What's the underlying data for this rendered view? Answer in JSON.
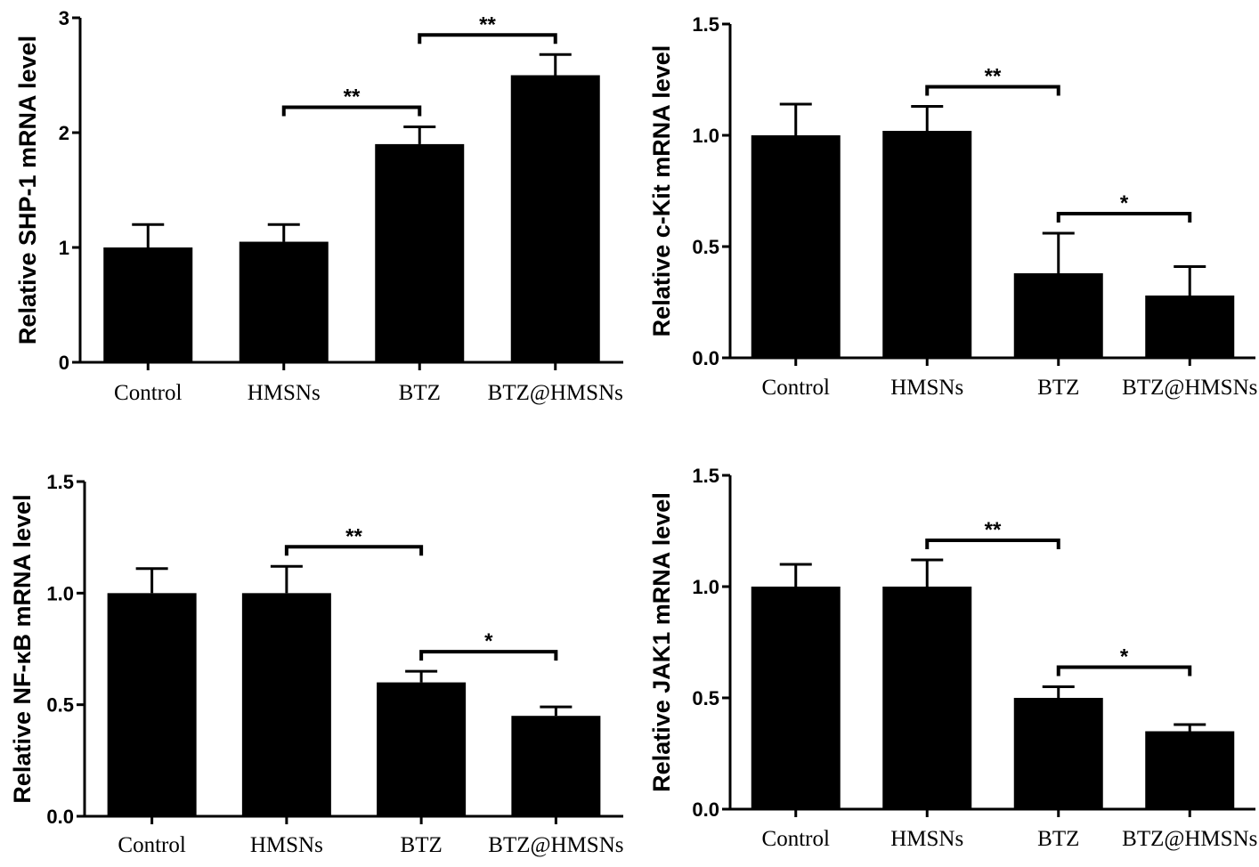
{
  "chart_data": [
    {
      "type": "bar",
      "ylabel": "Relative SHP-1 mRNA level",
      "xlabel": "",
      "categories": [
        "Control",
        "HMSNs",
        "BTZ",
        "BTZ@HMSNs"
      ],
      "values": [
        1.0,
        1.05,
        1.9,
        2.5
      ],
      "errors": [
        0.2,
        0.15,
        0.15,
        0.18
      ],
      "ylim": [
        0,
        3
      ],
      "yticks": [
        "0",
        "1",
        "2",
        "3"
      ],
      "significance": [
        {
          "from": 1,
          "to": 2,
          "label": "**"
        },
        {
          "from": 2,
          "to": 3,
          "label": "**"
        }
      ]
    },
    {
      "type": "bar",
      "ylabel": "Relative c-Kit mRNA level",
      "xlabel": "",
      "categories": [
        "Control",
        "HMSNs",
        "BTZ",
        "BTZ@HMSNs"
      ],
      "values": [
        1.0,
        1.02,
        0.38,
        0.28
      ],
      "errors": [
        0.14,
        0.11,
        0.18,
        0.13
      ],
      "ylim": [
        0,
        1.5
      ],
      "yticks": [
        "0.0",
        "0.5",
        "1.0",
        "1.5"
      ],
      "significance": [
        {
          "from": 1,
          "to": 2,
          "label": "**"
        },
        {
          "from": 2,
          "to": 3,
          "label": "*"
        }
      ]
    },
    {
      "type": "bar",
      "ylabel": "Relative NF-κB mRNA level",
      "xlabel": "",
      "categories": [
        "Control",
        "HMSNs",
        "BTZ",
        "BTZ@HMSNs"
      ],
      "values": [
        1.0,
        1.0,
        0.6,
        0.45
      ],
      "errors": [
        0.11,
        0.12,
        0.05,
        0.04
      ],
      "ylim": [
        0,
        1.5
      ],
      "yticks": [
        "0.0",
        "0.5",
        "1.0",
        "1.5"
      ],
      "significance": [
        {
          "from": 1,
          "to": 2,
          "label": "**"
        },
        {
          "from": 2,
          "to": 3,
          "label": "*"
        }
      ]
    },
    {
      "type": "bar",
      "ylabel": "Relative JAK1 mRNA level",
      "xlabel": "",
      "categories": [
        "Control",
        "HMSNs",
        "BTZ",
        "BTZ@HMSNs"
      ],
      "values": [
        1.0,
        1.0,
        0.5,
        0.35
      ],
      "errors": [
        0.1,
        0.12,
        0.05,
        0.03
      ],
      "ylim": [
        0,
        1.5
      ],
      "yticks": [
        "0.0",
        "0.5",
        "1.0",
        "1.5"
      ],
      "significance": [
        {
          "from": 1,
          "to": 2,
          "label": "**"
        },
        {
          "from": 2,
          "to": 3,
          "label": "*"
        }
      ]
    }
  ],
  "style": {
    "bar_color": "#000000",
    "axis_color": "#000000",
    "background": "#ffffff"
  }
}
